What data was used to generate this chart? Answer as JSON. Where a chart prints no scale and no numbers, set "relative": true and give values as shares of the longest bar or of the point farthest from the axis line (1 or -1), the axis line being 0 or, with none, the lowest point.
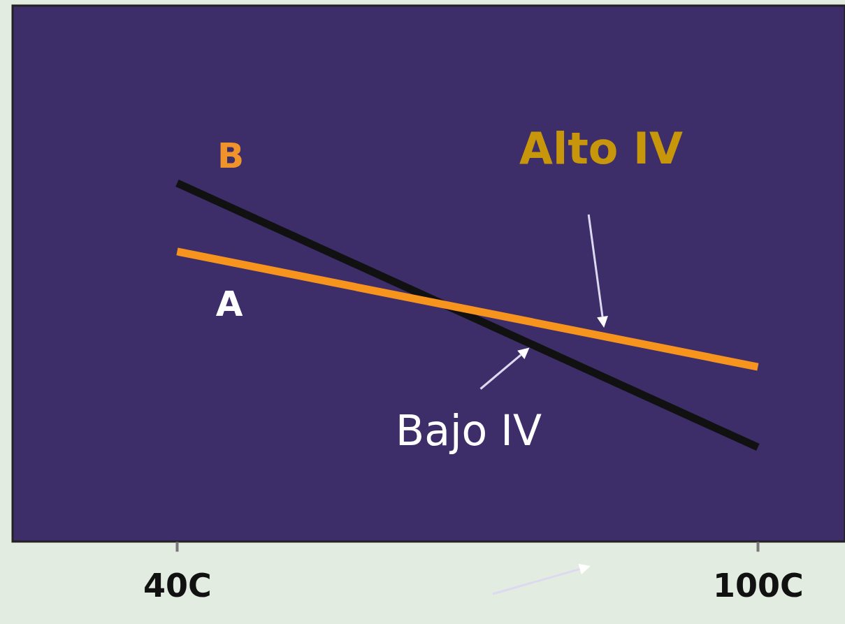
{
  "chart_data": {
    "type": "line",
    "relative": true,
    "x": [
      40,
      100
    ],
    "xlim": [
      23,
      109
    ],
    "xticks": [
      {
        "value": 40,
        "label": "40C"
      },
      {
        "value": 100,
        "label": "100C"
      }
    ],
    "series": [
      {
        "color": "#111111",
        "values": [
          1,
          0.263
        ]
      },
      {
        "color": "#f7941d",
        "values": [
          0.809,
          0.487
        ]
      }
    ],
    "annotations": [
      "B",
      "A",
      "Alto IV",
      {
        "text": "Bajo IV",
        "x": 77.7,
        "y": 0.537
      }
    ],
    "marker": "none",
    "line_style": "solid"
  }
}
